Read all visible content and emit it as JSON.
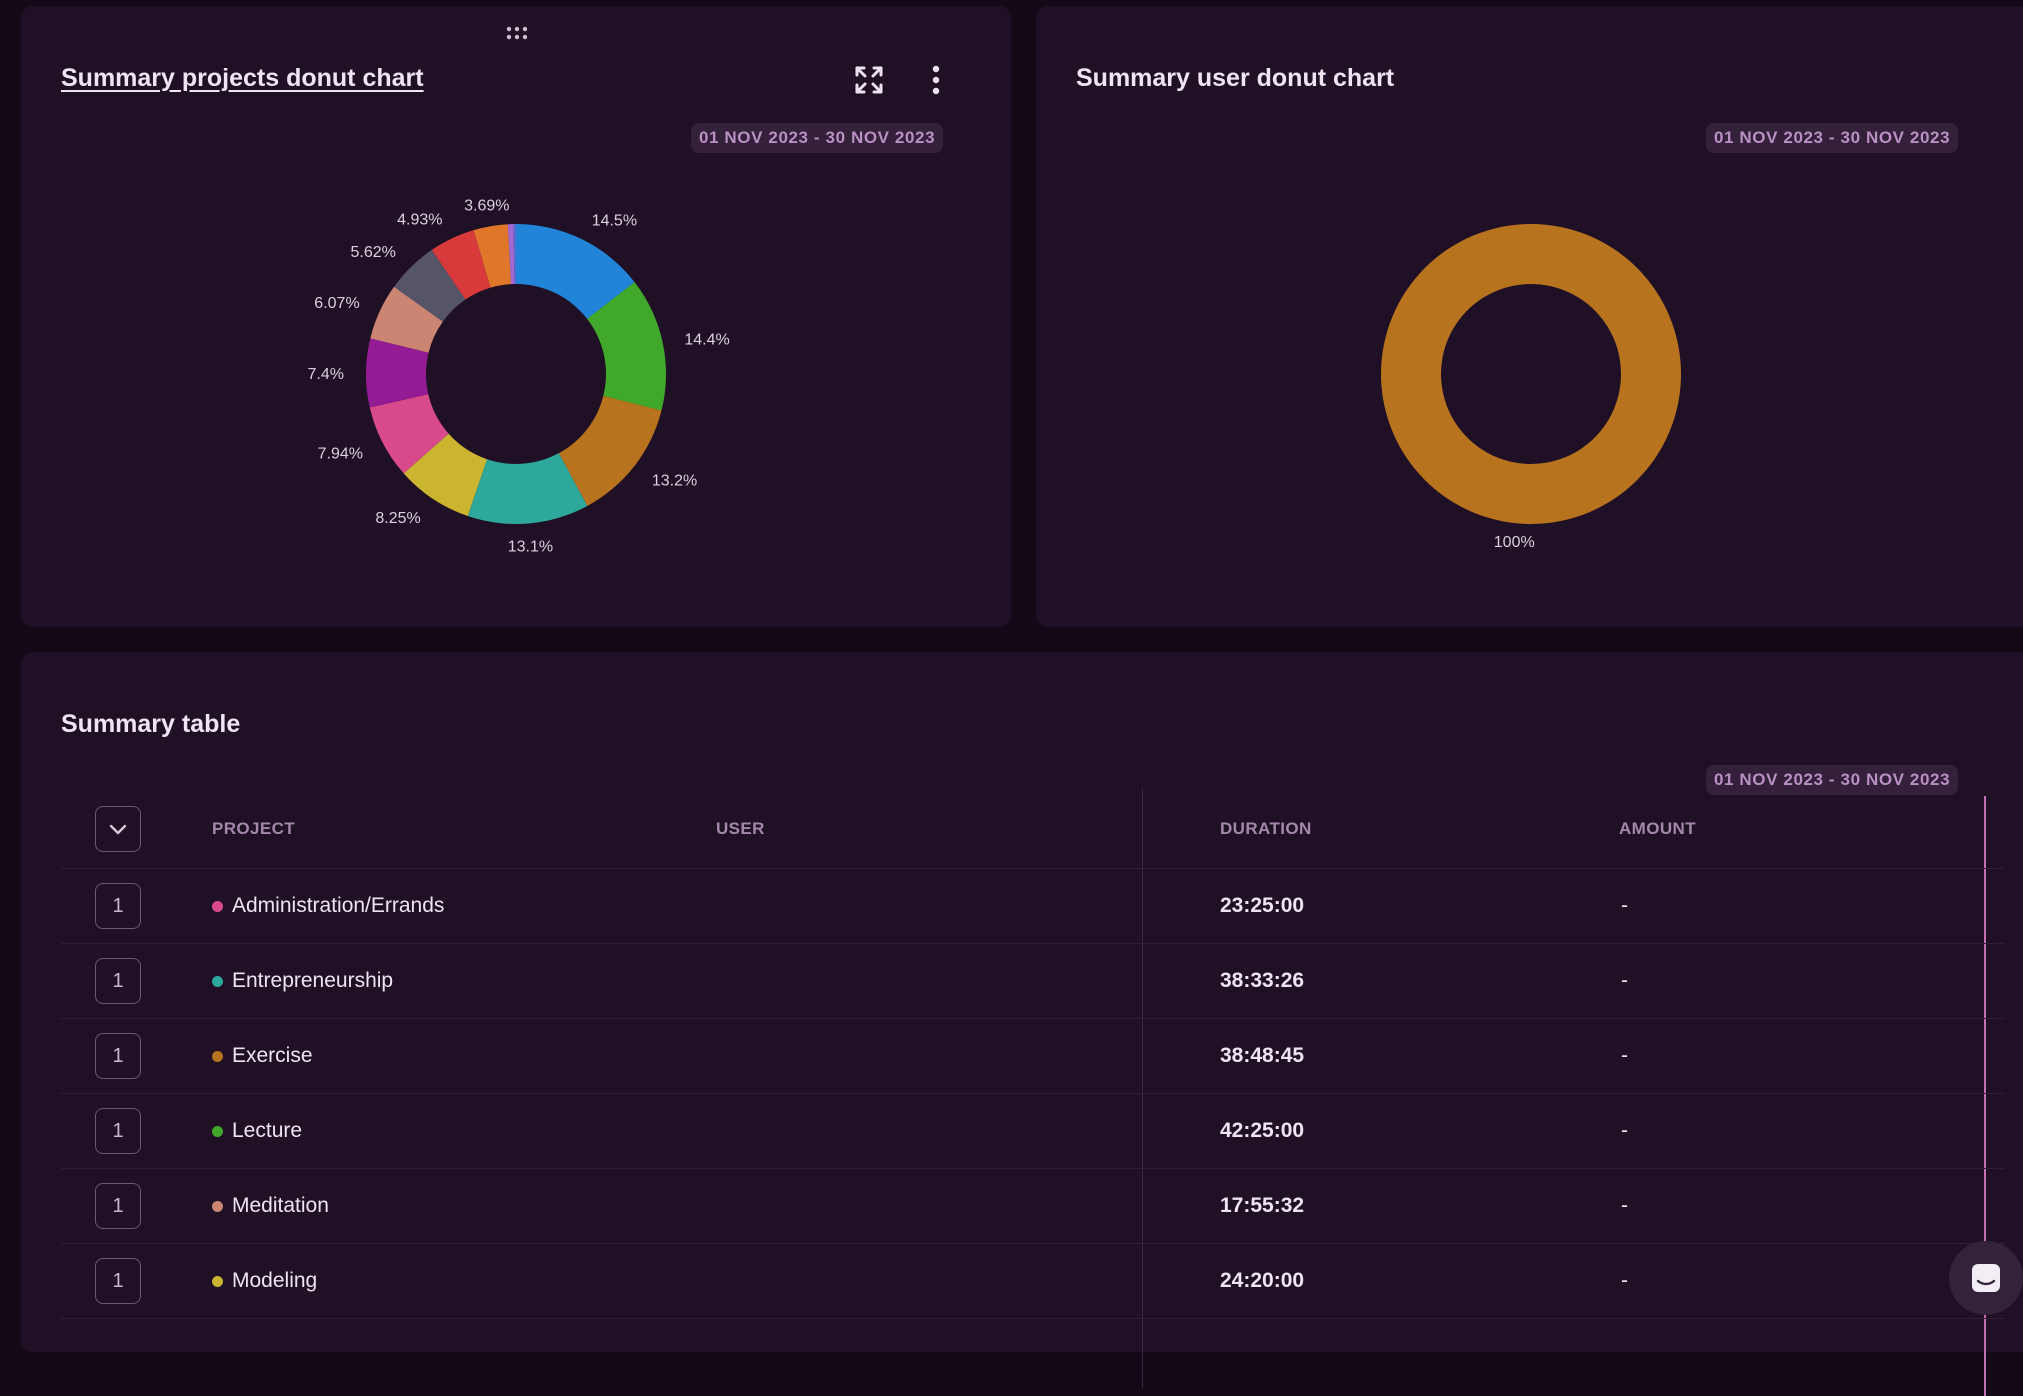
{
  "projects_card": {
    "title": "Summary projects donut chart",
    "date_range": "01 NOV 2023 - 30 NOV 2023",
    "icons": {
      "drag": "drag-handle-icon",
      "expand": "expand-icon",
      "menu": "more-vertical-icon"
    }
  },
  "users_card": {
    "title": "Summary user donut chart",
    "date_range": "01 NOV 2023 - 30 NOV 2023"
  },
  "table_card": {
    "title": "Summary table",
    "date_range": "01 NOV 2023 - 30 NOV 2023",
    "columns": {
      "project": "PROJECT",
      "user": "USER",
      "duration": "DURATION",
      "amount": "AMOUNT"
    },
    "rows": [
      {
        "count": "1",
        "project": "Administration/Errands",
        "color": "#d84a8c",
        "user": "",
        "duration": "23:25:00",
        "amount": "-"
      },
      {
        "count": "1",
        "project": "Entrepreneurship",
        "color": "#2ea89a",
        "user": "",
        "duration": "38:33:26",
        "amount": "-"
      },
      {
        "count": "1",
        "project": "Exercise",
        "color": "#b8731f",
        "user": "",
        "duration": "38:48:45",
        "amount": "-"
      },
      {
        "count": "1",
        "project": "Lecture",
        "color": "#40a92b",
        "user": "",
        "duration": "42:25:00",
        "amount": "-"
      },
      {
        "count": "1",
        "project": "Meditation",
        "color": "#cc8572",
        "user": "",
        "duration": "17:55:32",
        "amount": "-"
      },
      {
        "count": "1",
        "project": "Modeling",
        "color": "#cbb430",
        "user": "",
        "duration": "24:20:00",
        "amount": "-"
      }
    ]
  },
  "chart_data": [
    {
      "type": "pie",
      "variant": "donut",
      "values": [
        14.5,
        14.4,
        13.2,
        13.1,
        8.25,
        7.94,
        7.4,
        6.07,
        5.62,
        4.93,
        3.69,
        0.6,
        0.27
      ],
      "labels": [
        "14.5%",
        "14.4%",
        "13.2%",
        "13.1%",
        "8.25%",
        "7.94%",
        "7.4%",
        "6.07%",
        "5.62%",
        "4.93%",
        "3.69%",
        "",
        ""
      ],
      "colors": [
        "#2184d8",
        "#40a92b",
        "#b8731f",
        "#2ea89a",
        "#cbb430",
        "#d84a8c",
        "#931b94",
        "#cc8572",
        "#565467",
        "#d8393b",
        "#e0762a",
        "#a26ad0",
        "#5b6cd6"
      ]
    },
    {
      "type": "pie",
      "variant": "donut",
      "values": [
        100
      ],
      "labels": [
        "100%"
      ],
      "colors": [
        "#b8731f"
      ]
    }
  ]
}
